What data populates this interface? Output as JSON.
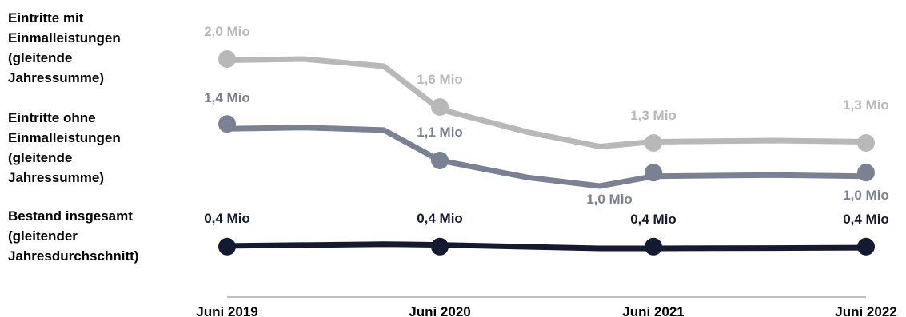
{
  "chart_data": {
    "type": "line",
    "categories": [
      "Juni 2019",
      "Juni 2020",
      "Juni 2021",
      "Juni 2022"
    ],
    "grid": false,
    "legend_placement": "left",
    "series": [
      {
        "name": "Eintritte mit Einmalleistungen (gleitende Jahressumme)",
        "name_lines": [
          "Eintritte mit",
          "Einmalleistungen",
          "(gleitende",
          "Jahressumme)"
        ],
        "color": "#b8b8b8",
        "values": [
          2.0,
          1.6,
          1.3,
          1.3
        ],
        "labels": [
          "2,0 Mio",
          "1,6 Mio",
          "1,3 Mio",
          "1,3 Mio"
        ],
        "path": [
          1.99,
          2.0,
          1.94,
          1.58,
          1.39,
          1.27,
          1.31,
          1.32,
          1.31
        ]
      },
      {
        "name": "Eintritte ohne Einmalleistungen (gleitende Jahressumme)",
        "name_lines": [
          "Eintritte ohne",
          "Einmalleistungen",
          "(gleitende",
          "Jahressumme)"
        ],
        "color": "#7a8193",
        "values": [
          1.4,
          1.1,
          1.0,
          1.0
        ],
        "labels": [
          "1,4 Mio",
          "1,1 Mio",
          "1,0 Mio",
          "1,0 Mio"
        ],
        "path": [
          1.36,
          1.37,
          1.35,
          1.1,
          0.96,
          0.89,
          0.97,
          0.98,
          0.97
        ]
      },
      {
        "name": "Bestand insgesamt (gleitender Jahresdurchschnitt)",
        "name_lines": [
          "Bestand insgesamt",
          "(gleitender",
          "Jahresdurchschnitt)"
        ],
        "color": "#141a30",
        "values": [
          0.4,
          0.4,
          0.4,
          0.4
        ],
        "labels": [
          "0,4 Mio",
          "0,4 Mio",
          "0,4 Mio",
          "0,4 Mio"
        ],
        "path": [
          0.402,
          0.407,
          0.405,
          0.395,
          0.395,
          0.396,
          0.397
        ]
      }
    ]
  }
}
